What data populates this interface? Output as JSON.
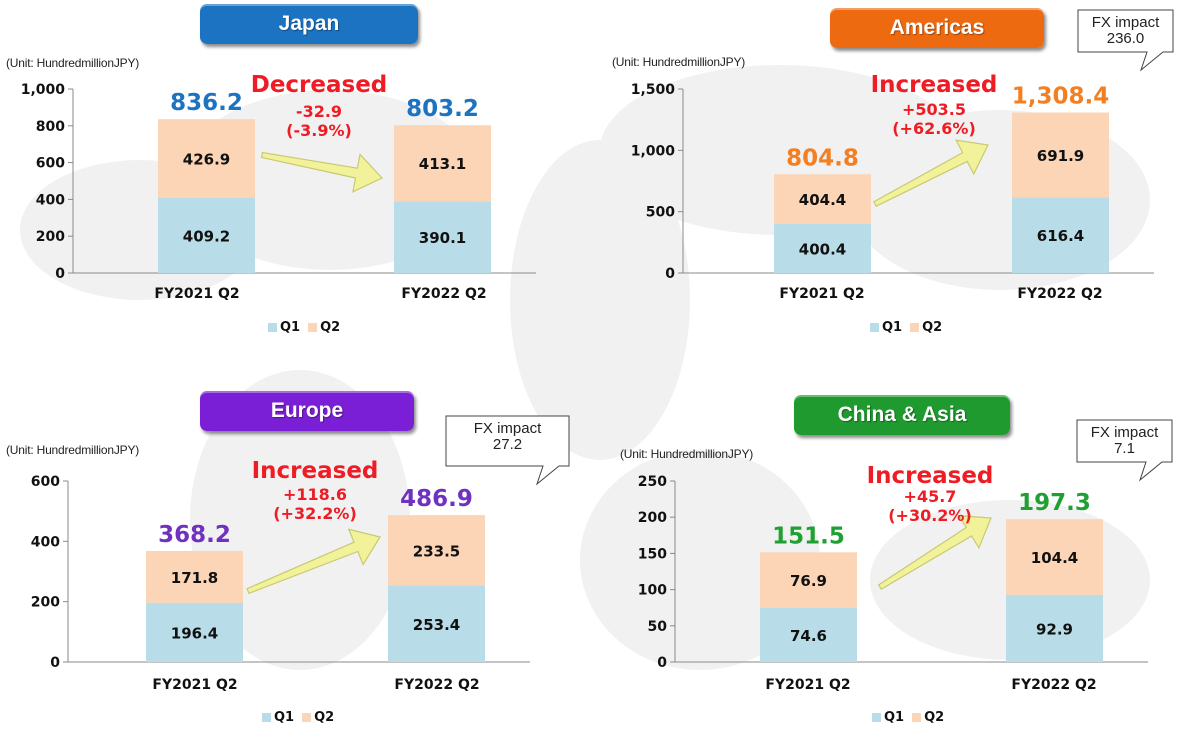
{
  "colors": {
    "q1": "#b8dde8",
    "q2": "#fbd5b5",
    "change_red": "#ee1c24",
    "arrow_fill": "#f1f29a",
    "arrow_stroke": "#c9c970"
  },
  "chart_data": [
    {
      "type": "bar",
      "stacked": true,
      "title": "Japan",
      "title_color": "#1b73c2",
      "unit_label": "(Unit: HundredmillionJPY)",
      "categories": [
        "FY2021 Q2",
        "FY2022 Q2"
      ],
      "series": [
        {
          "name": "Q1",
          "values": [
            409.2,
            390.1
          ],
          "labels": [
            "409.2",
            "390.1"
          ]
        },
        {
          "name": "Q2",
          "values": [
            426.9,
            413.1
          ],
          "labels": [
            "426.9",
            "413.1"
          ]
        }
      ],
      "totals": [
        "836.2",
        "803.2"
      ],
      "total_color": "#1b73c2",
      "ylim": [
        0,
        1000
      ],
      "yticks": [
        "0",
        "200",
        "400",
        "600",
        "800",
        "1,000"
      ],
      "ytick_values": [
        0,
        200,
        400,
        600,
        800,
        1000
      ],
      "change": {
        "word": "Decreased",
        "amount": "-32.9",
        "percent": "(-3.9%)"
      },
      "fx_impact": null,
      "legend": [
        "Q1",
        "Q2"
      ]
    },
    {
      "type": "bar",
      "stacked": true,
      "title": "Americas",
      "title_color": "#ee6a10",
      "unit_label": "(Unit: HundredmillionJPY)",
      "categories": [
        "FY2021 Q2",
        "FY2022 Q2"
      ],
      "series": [
        {
          "name": "Q1",
          "values": [
            400.4,
            616.4
          ],
          "labels": [
            "400.4",
            "616.4"
          ]
        },
        {
          "name": "Q2",
          "values": [
            404.4,
            691.9
          ],
          "labels": [
            "404.4",
            "691.9"
          ]
        }
      ],
      "totals": [
        "804.8",
        "1,308.4"
      ],
      "total_color": "#f47f20",
      "ylim": [
        0,
        1500
      ],
      "yticks": [
        "0",
        "500",
        "1,000",
        "1,500"
      ],
      "ytick_values": [
        0,
        500,
        1000,
        1500
      ],
      "change": {
        "word": "Increased",
        "amount": "+503.5",
        "percent": "(+62.6%)"
      },
      "fx_impact": {
        "label": "FX impact",
        "value": "236.0"
      },
      "legend": [
        "Q1",
        "Q2"
      ]
    },
    {
      "type": "bar",
      "stacked": true,
      "title": "Europe",
      "title_color": "#7a1fd6",
      "unit_label": "(Unit: HundredmillionJPY)",
      "categories": [
        "FY2021 Q2",
        "FY2022 Q2"
      ],
      "series": [
        {
          "name": "Q1",
          "values": [
            196.4,
            253.4
          ],
          "labels": [
            "196.4",
            "253.4"
          ]
        },
        {
          "name": "Q2",
          "values": [
            171.8,
            233.5
          ],
          "labels": [
            "171.8",
            "233.5"
          ]
        }
      ],
      "totals": [
        "368.2",
        "486.9"
      ],
      "total_color": "#7030c0",
      "ylim": [
        0,
        600
      ],
      "yticks": [
        "0",
        "200",
        "400",
        "600"
      ],
      "ytick_values": [
        0,
        200,
        400,
        600
      ],
      "change": {
        "word": "Increased",
        "amount": "+118.6",
        "percent": "(+32.2%)"
      },
      "fx_impact": {
        "label": "FX impact",
        "value": "27.2"
      },
      "legend": [
        "Q1",
        "Q2"
      ]
    },
    {
      "type": "bar",
      "stacked": true,
      "title": "China & Asia",
      "title_color": "#1f9a2e",
      "unit_label": "(Unit: HundredmillionJPY)",
      "categories": [
        "FY2021 Q2",
        "FY2022 Q2"
      ],
      "series": [
        {
          "name": "Q1",
          "values": [
            74.6,
            92.9
          ],
          "labels": [
            "74.6",
            "92.9"
          ]
        },
        {
          "name": "Q2",
          "values": [
            76.9,
            104.4
          ],
          "labels": [
            "76.9",
            "104.4"
          ]
        }
      ],
      "totals": [
        "151.5",
        "197.3"
      ],
      "total_color": "#1fa033",
      "ylim": [
        0,
        250
      ],
      "yticks": [
        "0",
        "50",
        "100",
        "150",
        "200",
        "250"
      ],
      "ytick_values": [
        0,
        50,
        100,
        150,
        200,
        250
      ],
      "change": {
        "word": "Increased",
        "amount": "+45.7",
        "percent": "(+30.2%)"
      },
      "fx_impact": {
        "label": "FX impact",
        "value": "7.1"
      },
      "legend": [
        "Q1",
        "Q2"
      ]
    }
  ]
}
